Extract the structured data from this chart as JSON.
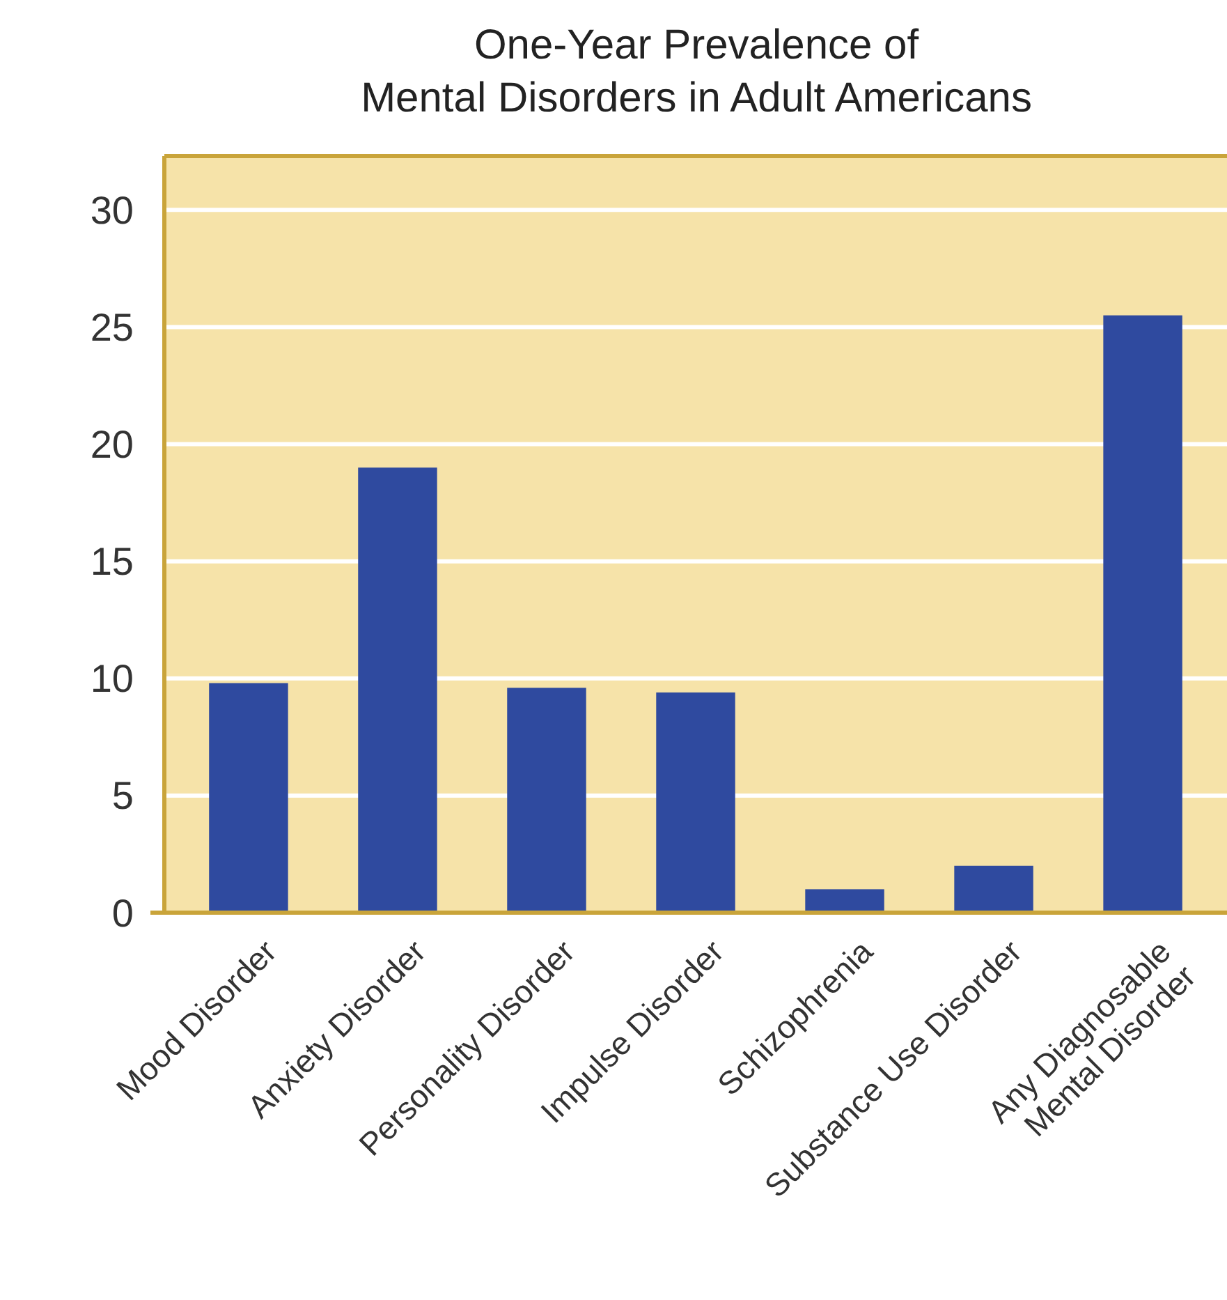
{
  "chart_data": {
    "type": "bar",
    "title": "One-Year Prevalence of\nMental Disorders in Adult Americans",
    "categories": [
      "Mood Disorder",
      "Anxiety Disorder",
      "Personality Disorder",
      "Impulse Disorder",
      "Schizophrenia",
      "Substance Use Disorder",
      "Any Diagnosable\nMental Disorder"
    ],
    "values": [
      9.8,
      19,
      9.6,
      9.4,
      1,
      2,
      25.5
    ],
    "color": "#2f4a9f",
    "ylim": [
      0,
      32.3
    ],
    "yticks": [
      0,
      5,
      10,
      15,
      20,
      25,
      30
    ],
    "grid": "y"
  }
}
